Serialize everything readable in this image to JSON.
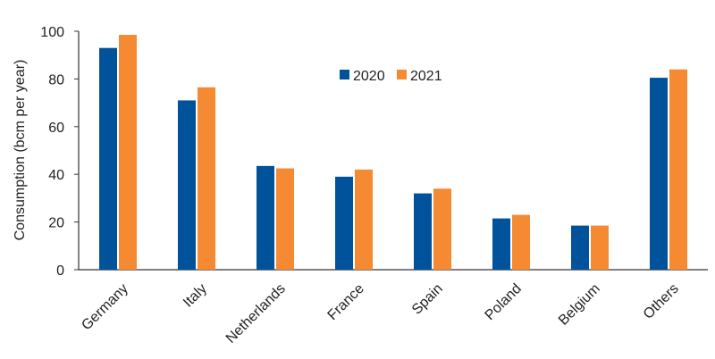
{
  "chart_data": {
    "type": "bar",
    "title": "",
    "xlabel": "",
    "ylabel": "Consumption (bcm per year)",
    "ylim": [
      0,
      100
    ],
    "yticks": [
      0,
      20,
      40,
      60,
      80,
      100
    ],
    "grid": false,
    "legend_position": "top-center",
    "categories": [
      "Germany",
      "Italy",
      "Netherlands",
      "France",
      "Spain",
      "Poland",
      "Belgium",
      "Others"
    ],
    "series": [
      {
        "name": "2020",
        "color": "#00529b",
        "values": [
          93,
          71,
          43.5,
          39,
          32,
          21.5,
          18.5,
          80.5
        ]
      },
      {
        "name": "2021",
        "color": "#f58a33",
        "values": [
          98.5,
          76.5,
          42.5,
          42,
          34,
          23,
          18.5,
          84
        ]
      }
    ]
  }
}
